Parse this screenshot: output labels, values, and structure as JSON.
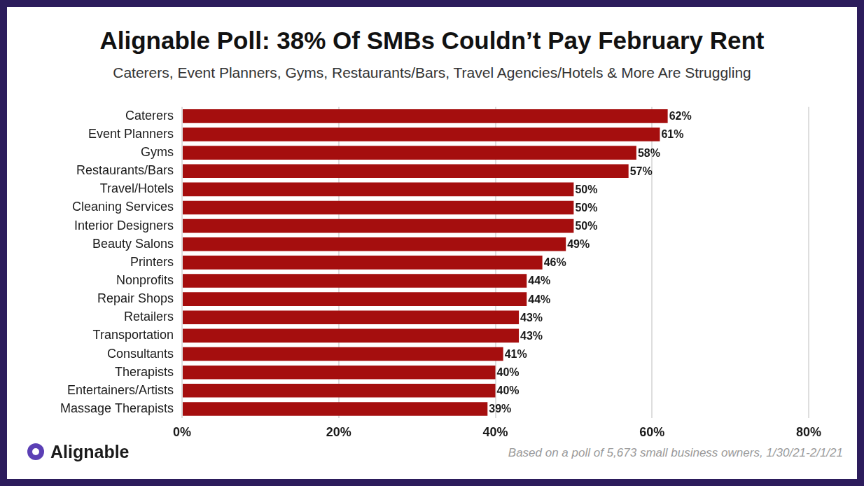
{
  "chart_data": {
    "type": "bar",
    "title": "Alignable Poll: 38% Of SMBs Couldn’t Pay February Rent",
    "subtitle": "Caterers, Event Planners, Gyms, Restaurants/Bars, Travel Agencies/Hotels & More Are Struggling",
    "categories": [
      "Caterers",
      "Event Planners",
      "Gyms",
      "Restaurants/Bars",
      "Travel/Hotels",
      "Cleaning Services",
      "Interior Designers",
      "Beauty Salons",
      "Printers",
      "Nonprofits",
      "Repair Shops",
      "Retailers",
      "Transportation",
      "Consultants",
      "Therapists",
      "Entertainers/Artists",
      "Massage Therapists"
    ],
    "values": [
      62,
      61,
      58,
      57,
      50,
      50,
      50,
      49,
      46,
      44,
      44,
      43,
      43,
      41,
      40,
      40,
      39
    ],
    "value_labels": [
      "62%",
      "61%",
      "58%",
      "57%",
      "50%",
      "50%",
      "50%",
      "49%",
      "46%",
      "44%",
      "44%",
      "43%",
      "43%",
      "41%",
      "40%",
      "40%",
      "39%"
    ],
    "color": "#a50e0e",
    "orientation": "horizontal",
    "xlim": [
      0,
      80
    ],
    "xticks": [
      {
        "value": 0,
        "label": "0%"
      },
      {
        "value": 20,
        "label": "20%"
      },
      {
        "value": 40,
        "label": "40%"
      },
      {
        "value": 60,
        "label": "60%"
      },
      {
        "value": 80,
        "label": "80%"
      }
    ],
    "grid": true,
    "data_labels": true,
    "annotations": [
      "Alignable",
      "Based on a poll of 5,673 small business owners, 1/30/21-2/1/21"
    ]
  }
}
